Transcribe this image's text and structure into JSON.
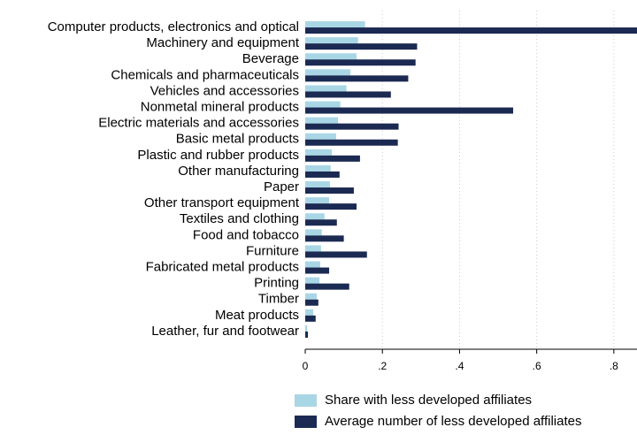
{
  "chart_data": {
    "type": "hbar",
    "categories": [
      "Computer products, electronics and optical",
      "Machinery and equipment",
      "Beverage",
      "Chemicals and pharmaceuticals",
      "Vehicles and accessories",
      "Nonmetal mineral products",
      "Electric materials and accessories",
      "Basic metal products",
      "Plastic and rubber products",
      "Other manufacturing",
      "Paper",
      "Other transport equipment",
      "Textiles and clothing",
      "Food and tobacco",
      "Furniture",
      "Fabricated metal products",
      "Printing",
      "Timber",
      "Meat products",
      "Leather, fur and footwear"
    ],
    "series": [
      {
        "name": "Share with less developed affiliates",
        "color": "#a9d6e5",
        "values": [
          0.155,
          0.137,
          0.133,
          0.117,
          0.107,
          0.091,
          0.085,
          0.08,
          0.069,
          0.066,
          0.064,
          0.062,
          0.05,
          0.043,
          0.041,
          0.039,
          0.037,
          0.03,
          0.021,
          0.005
        ]
      },
      {
        "name": "Average number of less developed affiliates",
        "color": "#1b2a52",
        "values": [
          0.9,
          0.29,
          0.286,
          0.267,
          0.222,
          0.539,
          0.242,
          0.24,
          0.142,
          0.089,
          0.126,
          0.133,
          0.082,
          0.1,
          0.16,
          0.062,
          0.114,
          0.034,
          0.027,
          0.007
        ]
      }
    ],
    "xlim": [
      0,
      0.86
    ],
    "xticks": [
      0,
      {
        "value": 0.2,
        "label": ".2"
      },
      {
        "value": 0.4,
        "label": ".4"
      },
      {
        "value": 0.6,
        "label": ".6"
      },
      {
        "value": 0.8,
        "label": ".8"
      }
    ],
    "grid": true
  }
}
